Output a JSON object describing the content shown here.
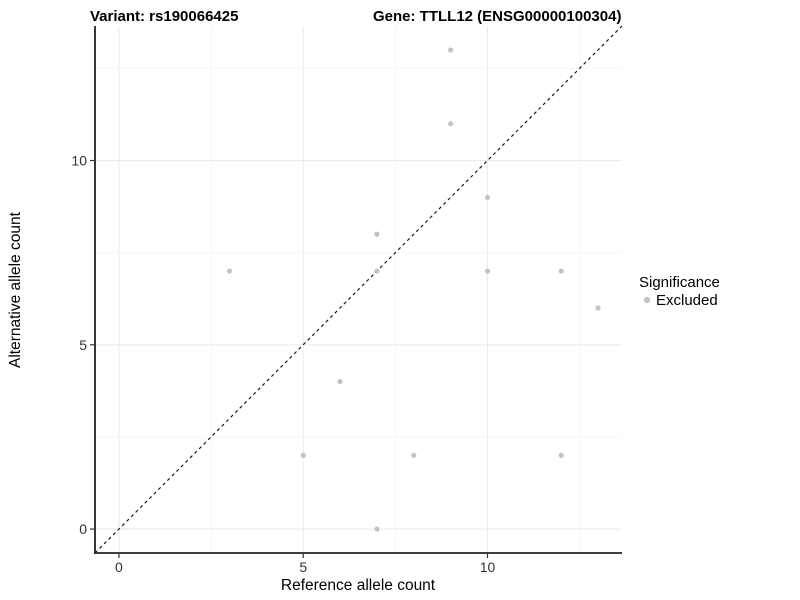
{
  "header": {
    "variant_title": "Variant: rs190066425",
    "gene_title": "Gene: TTLL12 (ENSG00000100304)"
  },
  "legend": {
    "title": "Significance",
    "items": [
      {
        "label": "Excluded",
        "color": "#c3c3c3"
      }
    ],
    "position": "right"
  },
  "colors": {
    "point": "#c3c3c3",
    "grid_major": "#ebebeb",
    "grid_minor": "#f4f4f4",
    "axis_line": "#222222",
    "tick_mark": "#333333",
    "dashed_line": "#1a1a1a",
    "background": "#ffffff"
  },
  "chart_data": {
    "type": "scatter",
    "title_left": "Variant: rs190066425",
    "title_right": "Gene: TTLL12 (ENSG00000100304)",
    "xlabel": "Reference allele count",
    "ylabel": "Alternative allele count",
    "xlim": [
      -0.65,
      13.65
    ],
    "ylim": [
      -0.65,
      13.65
    ],
    "x_major_ticks": [
      0,
      5,
      10
    ],
    "y_major_ticks": [
      0,
      5,
      10
    ],
    "x_minor_gridlines": [
      2.5,
      7.5,
      12.5
    ],
    "y_minor_gridlines": [
      2.5,
      7.5,
      12.5
    ],
    "grid": "major+minor",
    "legend_position": "right-center",
    "identity_line": {
      "style": "dashed",
      "slope": 1,
      "intercept": 0
    },
    "series": [
      {
        "name": "Excluded",
        "marker": "circle",
        "color": "#c3c3c3",
        "points": [
          [
            3,
            7
          ],
          [
            5,
            2
          ],
          [
            6,
            4
          ],
          [
            7,
            0
          ],
          [
            7,
            7
          ],
          [
            7,
            8
          ],
          [
            8,
            2
          ],
          [
            9,
            11
          ],
          [
            9,
            13
          ],
          [
            10,
            7
          ],
          [
            10,
            9
          ],
          [
            12,
            2
          ],
          [
            12,
            7
          ],
          [
            13,
            6
          ]
        ]
      }
    ]
  }
}
